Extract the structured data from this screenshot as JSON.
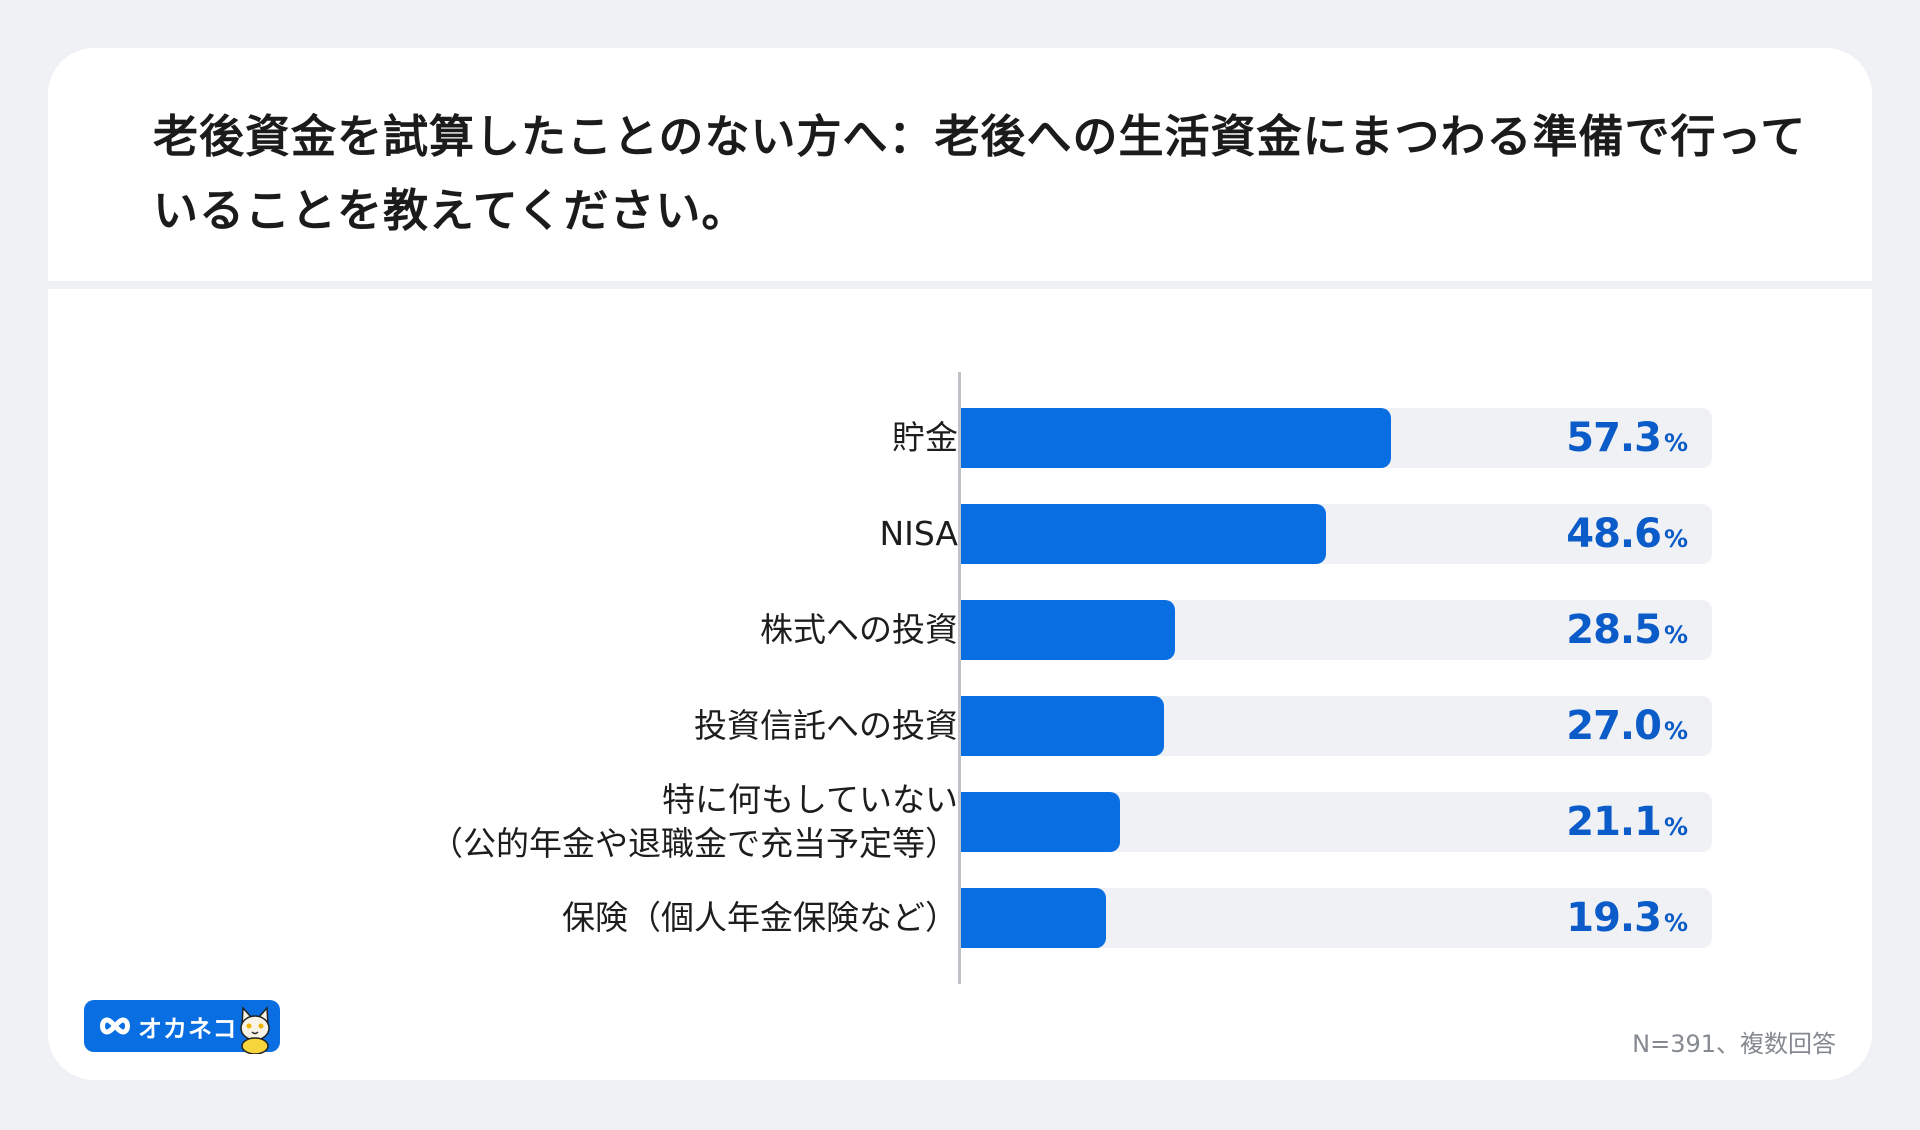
{
  "title": "老後資金を試算したことのない方へ：老後への生活資金にまつわる準備で行っていることを教えてください。",
  "note": "N=391、複数回答",
  "logo": {
    "brand": "オカネコ"
  },
  "colors": {
    "bar": "#0a6ee3",
    "track": "#eff1f4",
    "value_text": "#0b5bc8",
    "background": "#eff1f4"
  },
  "chart_data": {
    "type": "bar",
    "orientation": "horizontal",
    "categories": [
      "貯金",
      "NISA",
      "株式への投資",
      "投資信託への投資",
      "特に何もしていない\n（公的年金や退職金で充当予定等）",
      "保険（個人年金保険など）"
    ],
    "values": [
      57.3,
      48.6,
      28.5,
      27.0,
      21.1,
      19.3
    ],
    "value_labels": [
      "57.3",
      "48.6",
      "28.5",
      "27.0",
      "21.1",
      "19.3"
    ],
    "unit": "%",
    "xlim": [
      0,
      100
    ],
    "grid": false,
    "legend": "none"
  }
}
